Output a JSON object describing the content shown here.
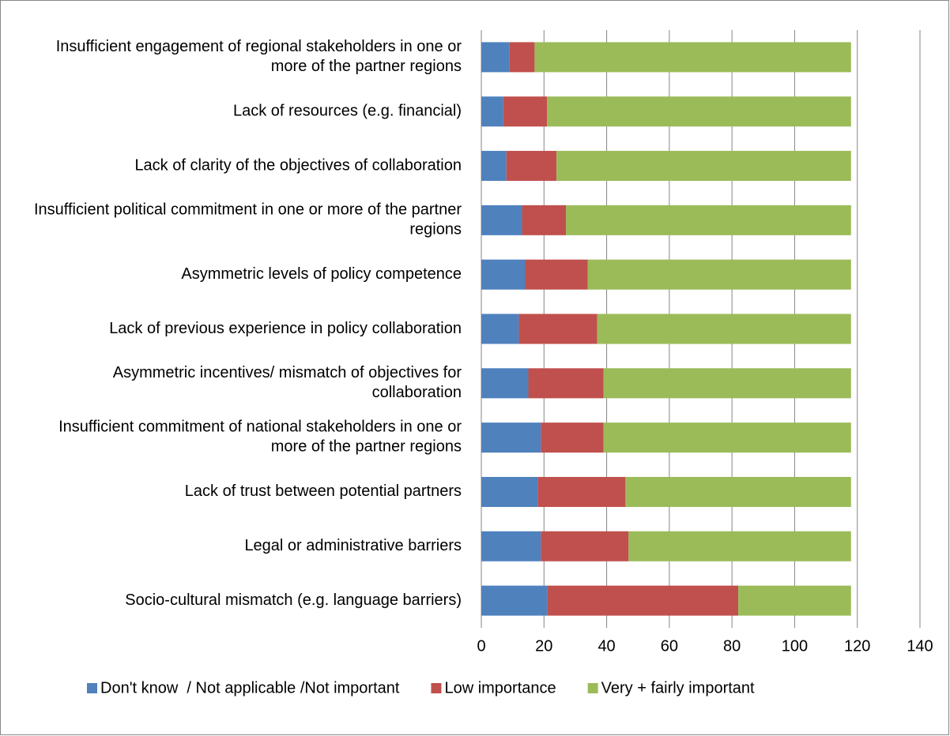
{
  "chart_data": {
    "type": "stacked-bar",
    "categories": [
      "Insufficient engagement of regional stakeholders in one or more of the partner regions",
      "Lack of resources (e.g. financial)",
      "Lack of clarity of the objectives of collaboration",
      "Insufficient political commitment in one or more of the partner regions",
      "Asymmetric levels of policy competence",
      "Lack of previous experience in policy collaboration",
      "Asymmetric incentives/ mismatch of objectives for collaboration",
      "Insufficient commitment of national stakeholders in one or more of the partner regions",
      "Lack of trust between potential partners",
      "Legal or administrative barriers",
      "Socio-cultural mismatch (e.g. language barriers)"
    ],
    "series": [
      {
        "name": "Don't know  / Not applicable /Not important",
        "color": "#4f81bd",
        "values": [
          9,
          7,
          8,
          13,
          14,
          12,
          15,
          19,
          18,
          19,
          21
        ]
      },
      {
        "name": "Low importance",
        "color": "#c0504d",
        "values": [
          8,
          14,
          16,
          14,
          20,
          25,
          24,
          20,
          28,
          28,
          61
        ]
      },
      {
        "name": "Very + fairly important",
        "color": "#9bbb59",
        "values": [
          101,
          97,
          94,
          91,
          84,
          81,
          79,
          79,
          72,
          71,
          36
        ]
      }
    ],
    "xlim": [
      0,
      140
    ],
    "xticks": [
      0,
      20,
      40,
      60,
      80,
      100,
      120,
      140
    ],
    "grid": true,
    "legend": "bottom"
  }
}
